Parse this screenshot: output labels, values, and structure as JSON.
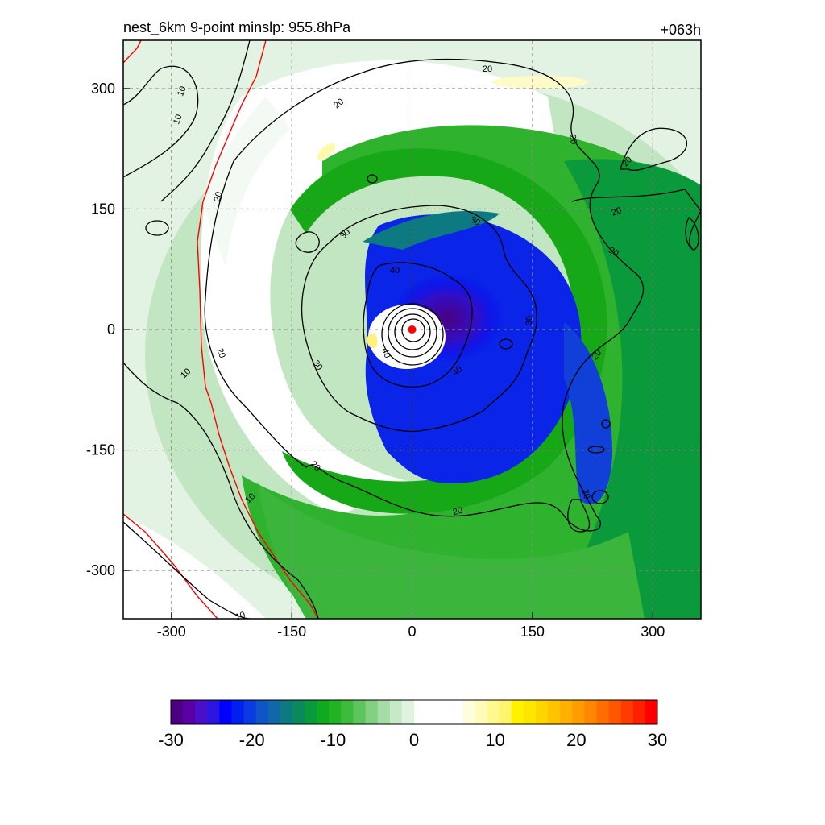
{
  "title_left": "nest_6km  9-point minslp: 955.8hPa",
  "title_right": "+063h",
  "chart_data": {
    "type": "heatmap",
    "title": "nest_6km  9-point minslp: 955.8hPa",
    "forecast_hour": "+063h",
    "xlim": [
      -360,
      360
    ],
    "ylim": [
      -360,
      360
    ],
    "x_ticks": [
      -300,
      -150,
      0,
      150,
      300
    ],
    "y_ticks": [
      300,
      150,
      0,
      -150,
      -300
    ],
    "x_tick_labels": [
      "-300",
      "-150",
      "0",
      "150",
      "300"
    ],
    "y_tick_labels": [
      "300",
      "150",
      "0",
      "-150",
      "-300"
    ],
    "grid": true,
    "storm_center": {
      "x": 0,
      "y": 0,
      "color": "#ff0000"
    },
    "colorbar": {
      "min": -30,
      "max": 30,
      "ticks": [
        -30,
        -20,
        -10,
        0,
        10,
        20,
        30
      ],
      "tick_labels": [
        "-30",
        "-20",
        "-10",
        "0",
        "10",
        "20",
        "30"
      ],
      "colors": [
        "#4b0082",
        "#5a00a6",
        "#4a10c8",
        "#2a16e0",
        "#0000ff",
        "#0020f0",
        "#0a3be0",
        "#0f55c8",
        "#1068a8",
        "#0d7a82",
        "#0a8a5a",
        "#089a3c",
        "#10aa20",
        "#23b423",
        "#3dbb3d",
        "#5ec45e",
        "#82d082",
        "#a6dca6",
        "#c6e9c6",
        "#e0f2e0",
        "#ffffff",
        "#ffffff",
        "#ffffff",
        "#ffffff",
        "#fffde0",
        "#fffbb8",
        "#fff990",
        "#fff56a",
        "#fff200",
        "#ffe600",
        "#ffd500",
        "#ffc300",
        "#ffb000",
        "#ff9c00",
        "#ff8600",
        "#ff6e00",
        "#ff5600",
        "#ff3c00",
        "#ff2000",
        "#ff0000"
      ]
    },
    "contour_levels": [
      10,
      20,
      30,
      40
    ],
    "contour_labels": [
      "10",
      "20",
      "30",
      "40"
    ],
    "contour_color": "#000000",
    "boundary_color": "#ff0000"
  }
}
